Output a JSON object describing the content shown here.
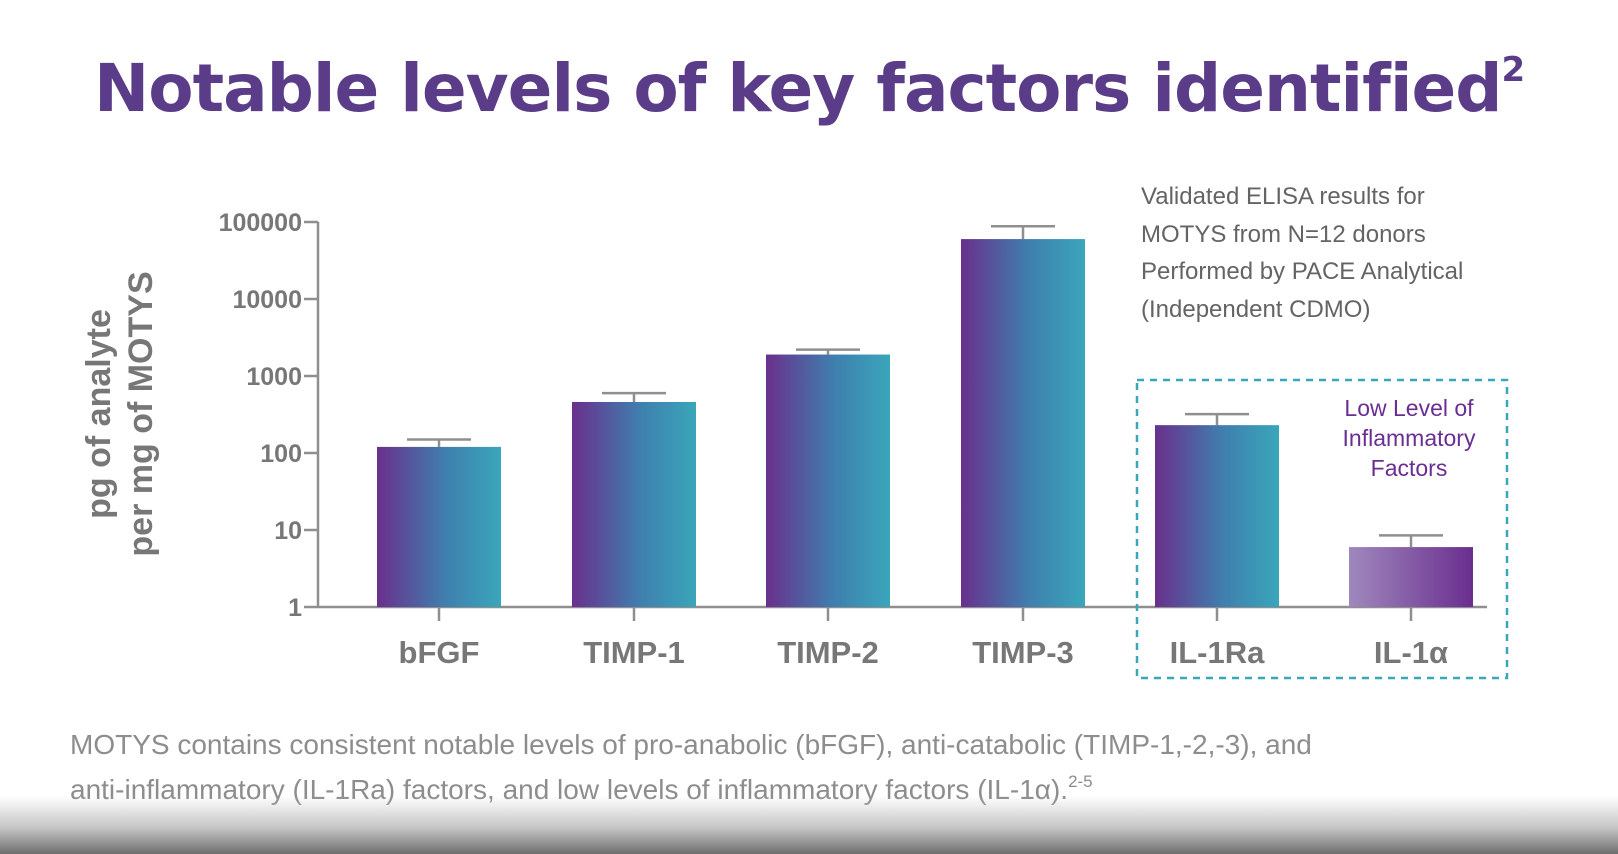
{
  "slide": {
    "title": "Notable levels of key factors identified",
    "title_sup": "2",
    "note_lines": [
      "Validated ELISA results for",
      "MOTYS from N=12 donors",
      "Performed by PACE Analytical",
      "(Independent CDMO)"
    ],
    "caption_line1": "MOTYS contains consistent notable levels of pro-anabolic (bFGF), anti-catabolic (TIMP-1,-2,-3), and",
    "caption_line2": "anti-inflammatory (IL-1Ra) factors, and low levels of inflammatory factors (IL-1α).",
    "caption_sup": "2-5"
  },
  "chart_data": {
    "type": "bar",
    "title": "",
    "ylabel_lines": [
      "pg of analyte",
      "per mg of MOTYS"
    ],
    "xlabel": "",
    "y_scale": "log",
    "ylim": [
      1,
      100000
    ],
    "yticks": [
      1,
      10,
      100,
      1000,
      10000,
      100000
    ],
    "ytick_labels": [
      "1",
      "10",
      "100",
      "1000",
      "10000",
      "100000"
    ],
    "categories": [
      "bFGF",
      "TIMP-1",
      "TIMP-2",
      "TIMP-3",
      "IL-1Ra",
      "IL-1α"
    ],
    "values": [
      120,
      460,
      1900,
      60000,
      230,
      6
    ],
    "error_upper": [
      150,
      600,
      2200,
      88000,
      320,
      8.5
    ],
    "highlight_box": {
      "categories": [
        "IL-1Ra",
        "IL-1α"
      ],
      "label_lines": [
        "Low Level of",
        "Inflammatory",
        "Factors"
      ]
    },
    "colors": {
      "bar_start": "#69308c",
      "bar_end": "#3aa6ba",
      "light_bar_start": "#9f88bd",
      "light_bar_end": "#6a2e8e",
      "box": "#3aa6ba",
      "box_label": "#6a2e92",
      "axis": "#8f8f8f",
      "text": "#777777"
    }
  }
}
